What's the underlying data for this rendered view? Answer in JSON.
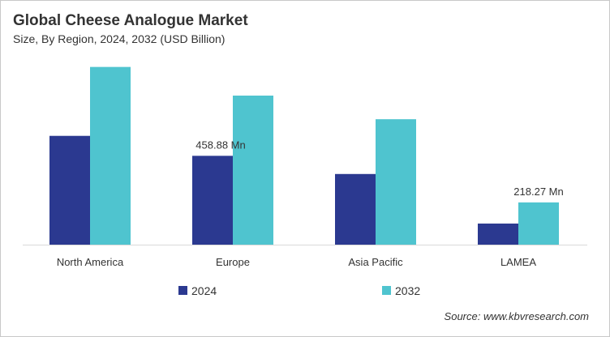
{
  "chart_data": {
    "type": "bar",
    "title": "Global Cheese Analogue Market",
    "subtitle": "Size, By Region, 2024, 2032 (USD Billion)",
    "categories": [
      "North America",
      "Europe",
      "Asia Pacific",
      "LAMEA"
    ],
    "series": [
      {
        "name": "2024",
        "color": "#2b3990",
        "values": [
          562,
          458.88,
          365,
          109
        ]
      },
      {
        "name": "2032",
        "color": "#4fc4cf",
        "values": [
          918,
          770,
          648,
          218.27
        ]
      }
    ],
    "data_labels": [
      {
        "series": 0,
        "category": 1,
        "text": "458.88 Mn"
      },
      {
        "series": 1,
        "category": 3,
        "text": "218.27 Mn"
      }
    ],
    "ylim": [
      0,
      950
    ],
    "grid": false,
    "legend": "bottom",
    "source": "Source: www.kbvresearch.com"
  }
}
